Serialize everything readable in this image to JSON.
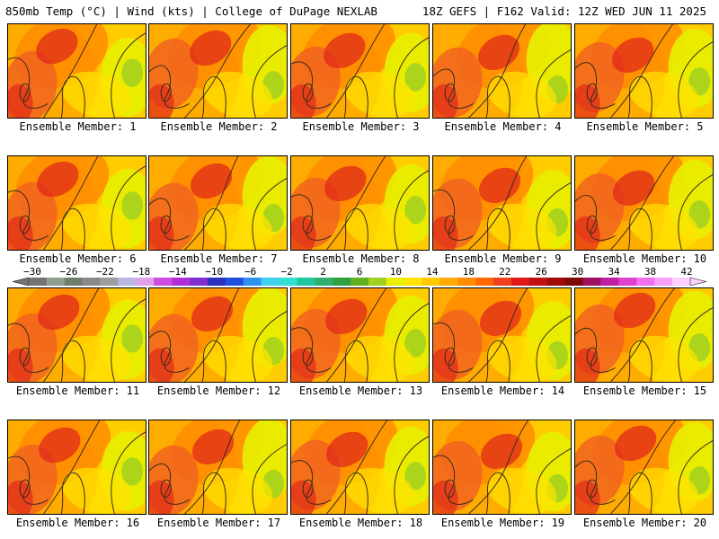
{
  "header": {
    "left": "850mb Temp (°C) | Wind (kts) | College of DuPage NEXLAB",
    "right": "18Z GEFS | F162 Valid: 12Z WED JUN 11 2025"
  },
  "panels": [
    {
      "label": "Ensemble Member: 1"
    },
    {
      "label": "Ensemble Member: 2"
    },
    {
      "label": "Ensemble Member: 3"
    },
    {
      "label": "Ensemble Member: 4"
    },
    {
      "label": "Ensemble Member: 5"
    },
    {
      "label": "Ensemble Member: 6"
    },
    {
      "label": "Ensemble Member: 7"
    },
    {
      "label": "Ensemble Member: 8"
    },
    {
      "label": "Ensemble Member: 9"
    },
    {
      "label": "Ensemble Member: 10"
    },
    {
      "label": "Ensemble Member: 11"
    },
    {
      "label": "Ensemble Member: 12"
    },
    {
      "label": "Ensemble Member: 13"
    },
    {
      "label": "Ensemble Member: 14"
    },
    {
      "label": "Ensemble Member: 15"
    },
    {
      "label": "Ensemble Member: 16"
    },
    {
      "label": "Ensemble Member: 17"
    },
    {
      "label": "Ensemble Member: 18"
    },
    {
      "label": "Ensemble Member: 19"
    },
    {
      "label": "Ensemble Member: 20"
    }
  ],
  "colorbar": {
    "ticks": [
      "−30",
      "−26",
      "−22",
      "−18",
      "−14",
      "−10",
      "−6",
      "−2",
      "2",
      "6",
      "10",
      "14",
      "18",
      "22",
      "26",
      "30",
      "34",
      "38",
      "42"
    ],
    "colors": [
      "#737373",
      "#8f9e8f",
      "#6f7f6f",
      "#8a8a8a",
      "#9e9e9e",
      "#b8b8e0",
      "#e0a0f0",
      "#d04ce0",
      "#b030d8",
      "#8030d0",
      "#3030c0",
      "#2050e0",
      "#3090f0",
      "#40d0f0",
      "#30e0d0",
      "#20c8a0",
      "#30b070",
      "#30a040",
      "#60b020",
      "#a0d020",
      "#e8f000",
      "#ffe400",
      "#ffc800",
      "#ffa800",
      "#ff8c00",
      "#ff6800",
      "#f04020",
      "#e01818",
      "#c01010",
      "#a00a0a",
      "#800808",
      "#a01060",
      "#c020a0",
      "#e040d0",
      "#f070f0",
      "#f8a0f8",
      "#fcd0fc"
    ]
  }
}
